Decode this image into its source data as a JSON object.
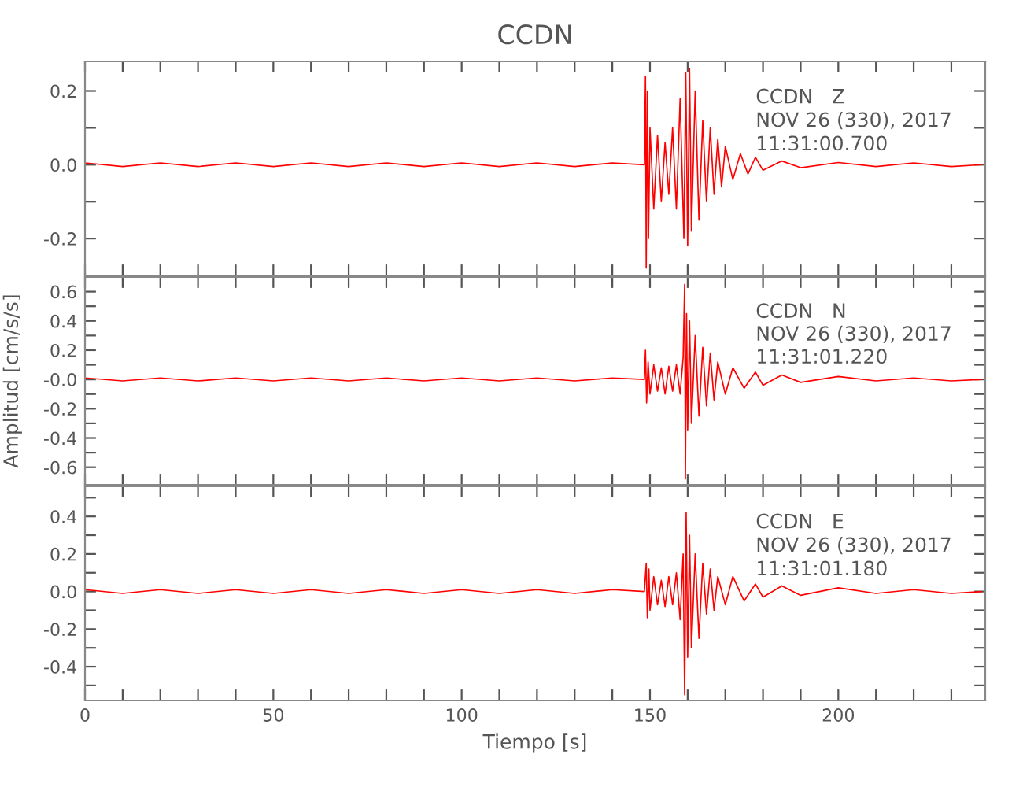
{
  "chart_data": [
    {
      "type": "line",
      "title": "CCDN",
      "tick_labels": "y",
      "grid": false,
      "legend": false,
      "marker": "none",
      "line_style": "solid",
      "annotations": [
        "CCDN   Z",
        "NOV 26 (330), 2017",
        "11:31:00.700"
      ],
      "xlim": [
        0,
        239
      ],
      "ylim": [
        -0.3,
        0.28
      ],
      "xticks": [
        {
          "value": 0,
          "label": null
        },
        {
          "value": 10,
          "label": null
        },
        {
          "value": 20,
          "label": null
        },
        {
          "value": 30,
          "label": null
        },
        {
          "value": 40,
          "label": null
        },
        {
          "value": 50,
          "label": null
        },
        {
          "value": 60,
          "label": null
        },
        {
          "value": 70,
          "label": null
        },
        {
          "value": 80,
          "label": null
        },
        {
          "value": 90,
          "label": null
        },
        {
          "value": 100,
          "label": null
        },
        {
          "value": 110,
          "label": null
        },
        {
          "value": 120,
          "label": null
        },
        {
          "value": 130,
          "label": null
        },
        {
          "value": 140,
          "label": null
        },
        {
          "value": 150,
          "label": null
        },
        {
          "value": 160,
          "label": null
        },
        {
          "value": 170,
          "label": null
        },
        {
          "value": 180,
          "label": null
        },
        {
          "value": 190,
          "label": null
        },
        {
          "value": 200,
          "label": null
        },
        {
          "value": 210,
          "label": null
        },
        {
          "value": 220,
          "label": null
        },
        {
          "value": 230,
          "label": null
        }
      ],
      "yticks": [
        {
          "value": -0.2,
          "label": "-0.2"
        },
        {
          "value": -0.1,
          "label": null
        },
        {
          "value": 0,
          "label": "0.0"
        },
        {
          "value": 0.1,
          "label": null
        },
        {
          "value": 0.2,
          "label": "0.2"
        }
      ],
      "series": [
        {
          "color": "#ff0000",
          "x": [
            0,
            10,
            20,
            30,
            40,
            50,
            60,
            70,
            80,
            90,
            100,
            110,
            120,
            130,
            140,
            148.5,
            148.8,
            149.0,
            149.3,
            149.6,
            150,
            151,
            152,
            153,
            154,
            155,
            156,
            157,
            158,
            159,
            159.5,
            160,
            160.5,
            161,
            162,
            163,
            164,
            165,
            166,
            167,
            168,
            169,
            170,
            172,
            174,
            176,
            178,
            180,
            185,
            190,
            200,
            210,
            220,
            230,
            238
          ],
          "values": [
            0.005,
            -0.005,
            0.005,
            -0.005,
            0.005,
            -0.005,
            0.005,
            -0.005,
            0.005,
            -0.005,
            0.005,
            -0.005,
            0.005,
            -0.005,
            0.005,
            0,
            0.24,
            -0.28,
            0.2,
            -0.2,
            0.1,
            -0.12,
            0.08,
            -0.1,
            0.06,
            -0.08,
            0.1,
            -0.12,
            0.18,
            -0.2,
            0.25,
            -0.22,
            0.26,
            -0.18,
            0.2,
            -0.15,
            0.12,
            -0.1,
            0.1,
            -0.08,
            0.07,
            -0.06,
            0.05,
            -0.04,
            0.03,
            -0.025,
            0.02,
            -0.015,
            0.01,
            -0.008,
            0.006,
            -0.005,
            0.005,
            -0.005,
            0
          ]
        }
      ]
    },
    {
      "type": "line",
      "ylabel": "Amplitud [cm/s/s]",
      "tick_labels": "y",
      "grid": false,
      "legend": false,
      "marker": "none",
      "line_style": "solid",
      "annotations": [
        "CCDN   N",
        "NOV 26 (330), 2017",
        "11:31:01.220"
      ],
      "xlim": [
        0,
        239
      ],
      "ylim": [
        -0.72,
        0.7
      ],
      "xticks": [
        {
          "value": 0,
          "label": null
        },
        {
          "value": 10,
          "label": null
        },
        {
          "value": 20,
          "label": null
        },
        {
          "value": 30,
          "label": null
        },
        {
          "value": 40,
          "label": null
        },
        {
          "value": 50,
          "label": null
        },
        {
          "value": 60,
          "label": null
        },
        {
          "value": 70,
          "label": null
        },
        {
          "value": 80,
          "label": null
        },
        {
          "value": 90,
          "label": null
        },
        {
          "value": 100,
          "label": null
        },
        {
          "value": 110,
          "label": null
        },
        {
          "value": 120,
          "label": null
        },
        {
          "value": 130,
          "label": null
        },
        {
          "value": 140,
          "label": null
        },
        {
          "value": 150,
          "label": null
        },
        {
          "value": 160,
          "label": null
        },
        {
          "value": 170,
          "label": null
        },
        {
          "value": 180,
          "label": null
        },
        {
          "value": 190,
          "label": null
        },
        {
          "value": 200,
          "label": null
        },
        {
          "value": 210,
          "label": null
        },
        {
          "value": 220,
          "label": null
        },
        {
          "value": 230,
          "label": null
        }
      ],
      "yticks": [
        {
          "value": -0.6,
          "label": "-0.6"
        },
        {
          "value": -0.5,
          "label": null
        },
        {
          "value": -0.4,
          "label": "-0.4"
        },
        {
          "value": -0.3,
          "label": null
        },
        {
          "value": -0.2,
          "label": "-0.2"
        },
        {
          "value": -0.1,
          "label": null
        },
        {
          "value": 0,
          "label": "-0.0"
        },
        {
          "value": 0.1,
          "label": null
        },
        {
          "value": 0.2,
          "label": "0.2"
        },
        {
          "value": 0.3,
          "label": null
        },
        {
          "value": 0.4,
          "label": "0.4"
        },
        {
          "value": 0.5,
          "label": null
        },
        {
          "value": 0.6,
          "label": "0.6"
        }
      ],
      "series": [
        {
          "color": "#ff0000",
          "x": [
            0,
            10,
            20,
            30,
            40,
            50,
            60,
            70,
            80,
            90,
            100,
            110,
            120,
            130,
            140,
            148.5,
            148.8,
            149.1,
            149.5,
            150,
            151,
            152,
            153,
            154,
            155,
            156,
            157,
            158,
            158.8,
            159.2,
            159.4,
            159.7,
            160,
            160.5,
            161,
            162,
            163,
            164,
            165,
            166,
            167,
            168,
            170,
            172,
            175,
            178,
            180,
            185,
            190,
            200,
            210,
            220,
            230,
            238
          ],
          "values": [
            0.01,
            -0.01,
            0.01,
            -0.01,
            0.01,
            -0.01,
            0.01,
            -0.01,
            0.01,
            -0.01,
            0.01,
            -0.01,
            0.01,
            -0.01,
            0.01,
            0,
            0.2,
            -0.16,
            0.12,
            -0.1,
            0.1,
            -0.08,
            0.08,
            -0.1,
            0.09,
            -0.08,
            0.1,
            -0.1,
            0.15,
            0.65,
            -0.68,
            0.45,
            -0.35,
            0.4,
            -0.3,
            0.3,
            -0.25,
            0.22,
            -0.18,
            0.18,
            -0.14,
            0.12,
            -0.1,
            0.08,
            -0.06,
            0.05,
            -0.04,
            0.03,
            -0.02,
            0.02,
            -0.01,
            0.01,
            -0.01,
            0
          ]
        }
      ]
    },
    {
      "type": "line",
      "xlabel": "Tiempo [s]",
      "grid": false,
      "legend": false,
      "marker": "none",
      "line_style": "solid",
      "annotations": [
        "CCDN   E",
        "NOV 26 (330), 2017",
        "11:31:01.180"
      ],
      "xlim": [
        0,
        239
      ],
      "ylim": [
        -0.58,
        0.56
      ],
      "xticks": [
        {
          "value": 0,
          "label": "0"
        },
        {
          "value": 10,
          "label": null
        },
        {
          "value": 20,
          "label": null
        },
        {
          "value": 30,
          "label": null
        },
        {
          "value": 40,
          "label": null
        },
        {
          "value": 50,
          "label": "50"
        },
        {
          "value": 60,
          "label": null
        },
        {
          "value": 70,
          "label": null
        },
        {
          "value": 80,
          "label": null
        },
        {
          "value": 90,
          "label": null
        },
        {
          "value": 100,
          "label": "100"
        },
        {
          "value": 110,
          "label": null
        },
        {
          "value": 120,
          "label": null
        },
        {
          "value": 130,
          "label": null
        },
        {
          "value": 140,
          "label": null
        },
        {
          "value": 150,
          "label": "150"
        },
        {
          "value": 160,
          "label": null
        },
        {
          "value": 170,
          "label": null
        },
        {
          "value": 180,
          "label": null
        },
        {
          "value": 190,
          "label": null
        },
        {
          "value": 200,
          "label": "200"
        },
        {
          "value": 210,
          "label": null
        },
        {
          "value": 220,
          "label": null
        },
        {
          "value": 230,
          "label": null
        }
      ],
      "yticks": [
        {
          "value": -0.5,
          "label": null
        },
        {
          "value": -0.4,
          "label": "-0.4"
        },
        {
          "value": -0.3,
          "label": null
        },
        {
          "value": -0.2,
          "label": "-0.2"
        },
        {
          "value": -0.1,
          "label": null
        },
        {
          "value": 0,
          "label": "0.0"
        },
        {
          "value": 0.1,
          "label": null
        },
        {
          "value": 0.2,
          "label": "0.2"
        },
        {
          "value": 0.3,
          "label": null
        },
        {
          "value": 0.4,
          "label": "0.4"
        },
        {
          "value": 0.5,
          "label": null
        }
      ],
      "series": [
        {
          "color": "#ff0000",
          "x": [
            0,
            10,
            20,
            30,
            40,
            50,
            60,
            70,
            80,
            90,
            100,
            110,
            120,
            130,
            140,
            148.5,
            149.0,
            149.3,
            149.7,
            150,
            151,
            152,
            153,
            154,
            155,
            156,
            157,
            158,
            158.8,
            159.2,
            159.6,
            160,
            160.5,
            161,
            162,
            163,
            164,
            165,
            166,
            167,
            168,
            170,
            172,
            175,
            178,
            180,
            185,
            190,
            200,
            210,
            220,
            230,
            238
          ],
          "values": [
            0.01,
            -0.01,
            0.01,
            -0.01,
            0.01,
            -0.01,
            0.01,
            -0.01,
            0.01,
            -0.01,
            0.01,
            -0.01,
            0.01,
            -0.01,
            0.01,
            0,
            0.15,
            -0.14,
            0.12,
            -0.1,
            0.08,
            -0.07,
            0.06,
            -0.08,
            0.08,
            -0.07,
            0.1,
            -0.15,
            0.2,
            -0.55,
            0.42,
            -0.35,
            0.3,
            -0.3,
            0.2,
            -0.25,
            0.15,
            -0.12,
            0.12,
            -0.1,
            0.08,
            -0.07,
            0.08,
            -0.05,
            0.04,
            -0.03,
            0.03,
            -0.02,
            0.02,
            -0.01,
            0.01,
            -0.01,
            0
          ]
        }
      ]
    }
  ]
}
